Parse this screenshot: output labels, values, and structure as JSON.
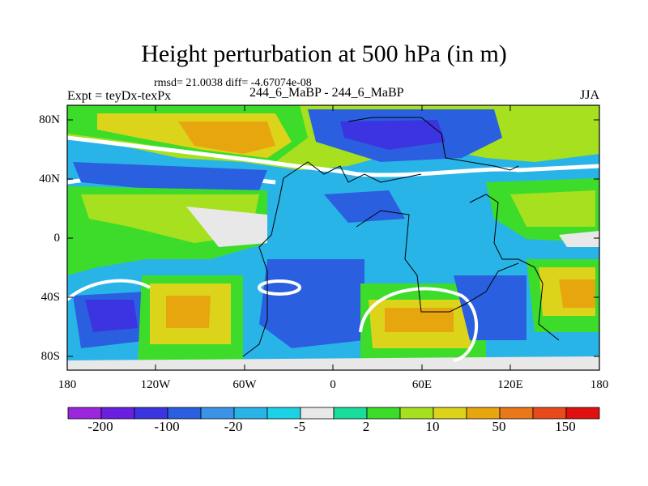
{
  "header": {
    "title": "Height perturbation at 500 hPa (in m)",
    "stats": "rmsd= 21.0038 diff= -4.67074e-08",
    "expt": "Expt = teyDx-texPx",
    "cases": "244_6_MaBP - 244_6_MaBP",
    "season": "JJA"
  },
  "axes": {
    "lat_labels": [
      "80N",
      "40N",
      "0",
      "40S",
      "80S"
    ],
    "lon_labels": [
      "180",
      "120W",
      "60W",
      "0",
      "60E",
      "120E",
      "180"
    ]
  },
  "colorbar": {
    "labels": [
      "-200",
      "-100",
      "-20",
      "-5",
      "2",
      "10",
      "50",
      "150"
    ],
    "colors": [
      "#9b26dc",
      "#6a1fe0",
      "#3c34e0",
      "#2a5fe0",
      "#3b93e8",
      "#29b4e8",
      "#1bd1e5",
      "#e8e8e8",
      "#19dd9b",
      "#3ddc2a",
      "#a6e01e",
      "#dcd41a",
      "#e8a60e",
      "#e8781a",
      "#e84a1c",
      "#e01010"
    ]
  },
  "map_colors": {
    "land_outline": "#000000",
    "white_band": "#ffffff"
  }
}
